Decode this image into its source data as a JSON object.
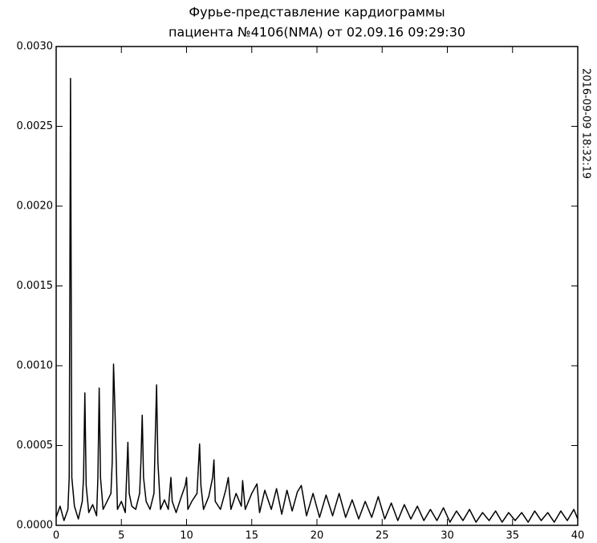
{
  "chart_data": {
    "type": "line",
    "title": "Фурье-представление кардиограммы",
    "subtitle": "пациента №4106(NMA) от 02.09.16 09:29:30",
    "timestamp": "2016-09-09 18:32:19",
    "x": [
      0,
      0.3,
      0.6,
      0.9,
      1.0,
      1.1,
      1.2,
      1.4,
      1.7,
      2.0,
      2.1,
      2.2,
      2.3,
      2.5,
      2.8,
      3.1,
      3.2,
      3.3,
      3.4,
      3.6,
      3.9,
      4.2,
      4.3,
      4.4,
      4.5,
      4.7,
      5.0,
      5.3,
      5.4,
      5.5,
      5.6,
      5.8,
      6.1,
      6.4,
      6.5,
      6.6,
      6.7,
      6.9,
      7.2,
      7.5,
      7.6,
      7.7,
      7.8,
      8.0,
      8.3,
      8.6,
      8.7,
      8.8,
      8.9,
      9.2,
      9.6,
      9.9,
      10.0,
      10.1,
      10.4,
      10.8,
      11.0,
      11.1,
      11.3,
      11.7,
      12.0,
      12.1,
      12.2,
      12.6,
      13.0,
      13.2,
      13.4,
      13.8,
      14.2,
      14.3,
      14.5,
      15.0,
      15.4,
      15.6,
      16.0,
      16.5,
      16.9,
      17.3,
      17.7,
      18.1,
      18.5,
      18.8,
      19.2,
      19.7,
      20.2,
      20.7,
      21.2,
      21.7,
      22.2,
      22.7,
      23.2,
      23.7,
      24.2,
      24.7,
      25.2,
      25.7,
      26.2,
      26.7,
      27.2,
      27.7,
      28.2,
      28.7,
      29.2,
      29.7,
      30.2,
      30.7,
      31.2,
      31.7,
      32.2,
      32.7,
      33.2,
      33.7,
      34.2,
      34.7,
      35.2,
      35.7,
      36.2,
      36.7,
      37.2,
      37.7,
      38.2,
      38.7,
      39.2,
      39.7,
      40
    ],
    "series": [
      {
        "color": "#000000",
        "values": [
          5e-05,
          0.00012,
          3e-05,
          0.0001,
          0.0003,
          0.0028,
          0.0003,
          0.00012,
          4e-05,
          0.00015,
          0.0003,
          0.00083,
          0.00025,
          8e-05,
          0.00013,
          6e-05,
          0.0003,
          0.00086,
          0.0003,
          0.0001,
          0.00015,
          0.0002,
          0.0004,
          0.00101,
          0.00075,
          0.0001,
          0.00015,
          8e-05,
          0.0003,
          0.00052,
          0.0002,
          0.00012,
          0.0001,
          0.0002,
          0.0004,
          0.00069,
          0.0003,
          0.00015,
          0.0001,
          0.0002,
          0.00055,
          0.00088,
          0.0004,
          0.0001,
          0.00016,
          0.0001,
          0.0002,
          0.0003,
          0.00015,
          8e-05,
          0.00018,
          0.00025,
          0.0003,
          0.0001,
          0.00015,
          0.0002,
          0.00051,
          0.00025,
          0.0001,
          0.00018,
          0.0003,
          0.00041,
          0.00015,
          0.0001,
          0.00022,
          0.0003,
          0.0001,
          0.0002,
          0.00012,
          0.00028,
          0.0001,
          0.0002,
          0.00026,
          8e-05,
          0.00022,
          0.0001,
          0.00023,
          7e-05,
          0.00022,
          9e-05,
          0.00021,
          0.00025,
          6e-05,
          0.0002,
          5e-05,
          0.00019,
          6e-05,
          0.0002,
          5e-05,
          0.00016,
          4e-05,
          0.00015,
          5e-05,
          0.00018,
          4e-05,
          0.00014,
          3e-05,
          0.00013,
          4e-05,
          0.00012,
          3e-05,
          0.0001,
          3e-05,
          0.00011,
          2e-05,
          9e-05,
          3e-05,
          0.0001,
          2e-05,
          8e-05,
          3e-05,
          9e-05,
          2e-05,
          8e-05,
          3e-05,
          8e-05,
          2e-05,
          9e-05,
          3e-05,
          8e-05,
          2e-05,
          9e-05,
          3e-05,
          0.0001,
          4e-05
        ]
      }
    ],
    "xlim": [
      0,
      40
    ],
    "xticks": [
      0,
      5,
      10,
      15,
      20,
      25,
      30,
      35,
      40
    ],
    "ylim": [
      0,
      0.003
    ],
    "yticks": [
      {
        "value": 0,
        "label": "0.0000"
      },
      {
        "value": 0.0005,
        "label": "0.0005"
      },
      {
        "value": 0.001,
        "label": "0.0010"
      },
      {
        "value": 0.0015,
        "label": "0.0015"
      },
      {
        "value": 0.002,
        "label": "0.0020"
      },
      {
        "value": 0.0025,
        "label": "0.0025"
      },
      {
        "value": 0.003,
        "label": "0.0030"
      }
    ],
    "grid": false
  }
}
